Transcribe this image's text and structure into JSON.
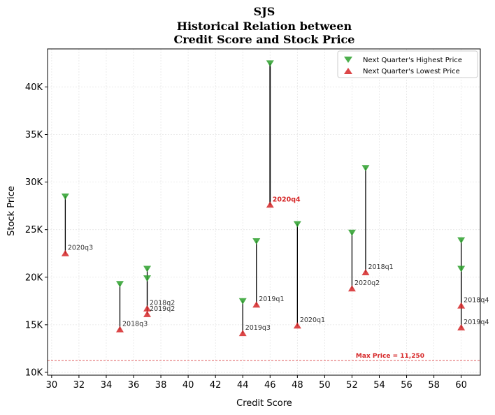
{
  "chart_data": {
    "type": "scatter",
    "title": [
      "SJS",
      "Historical Relation between",
      "Credit Score and Stock Price"
    ],
    "xlabel": "Credit Score",
    "ylabel": "Stock Price",
    "xlim": [
      29.7,
      61.4
    ],
    "ylim": [
      9700,
      44000
    ],
    "xticks": [
      30,
      32,
      34,
      36,
      38,
      40,
      42,
      44,
      46,
      48,
      50,
      52,
      54,
      56,
      58,
      60
    ],
    "yticks": [
      10000,
      15000,
      20000,
      25000,
      30000,
      35000,
      40000
    ],
    "ytick_labels": [
      "10K",
      "15K",
      "20K",
      "25K",
      "30K",
      "35K",
      "40K"
    ],
    "grid": true,
    "legend_position": "top-right",
    "series": [
      {
        "name": "Next Quarter's Highest Price",
        "marker": "triangle-down",
        "color": "#2ca02c"
      },
      {
        "name": "Next Quarter's Lowest Price",
        "marker": "triangle-up",
        "color": "#d62728"
      }
    ],
    "points": [
      {
        "x": 31,
        "high": 28500,
        "low": 22500,
        "label": "2020q3",
        "highlight": false
      },
      {
        "x": 35,
        "high": 19300,
        "low": 14500,
        "label": "2018q3",
        "highlight": false
      },
      {
        "x": 37,
        "high": 20900,
        "low": 16700,
        "label": "2018q2",
        "highlight": false
      },
      {
        "x": 37,
        "high": 19900,
        "low": 16100,
        "label": "2019q2",
        "highlight": false
      },
      {
        "x": 44,
        "high": 17500,
        "low": 14100,
        "label": "2019q3",
        "highlight": false
      },
      {
        "x": 45,
        "high": 23800,
        "low": 17100,
        "label": "2019q1",
        "highlight": false
      },
      {
        "x": 46,
        "high": 42500,
        "low": 27600,
        "label": "2020q4",
        "highlight": true
      },
      {
        "x": 48,
        "high": 25600,
        "low": 14900,
        "label": "2020q1",
        "highlight": false
      },
      {
        "x": 52,
        "high": 24700,
        "low": 18800,
        "label": "2020q2",
        "highlight": false
      },
      {
        "x": 53,
        "high": 31500,
        "low": 20500,
        "label": "2018q1",
        "highlight": false
      },
      {
        "x": 60,
        "high": 23900,
        "low": 17000,
        "label": "2018q4",
        "highlight": false
      },
      {
        "x": 60,
        "high": 20900,
        "low": 14700,
        "label": "2019q4",
        "highlight": false
      }
    ],
    "reference_line": {
      "y": 11250,
      "label": "Max Price = 11,250",
      "color": "#d62728"
    }
  }
}
